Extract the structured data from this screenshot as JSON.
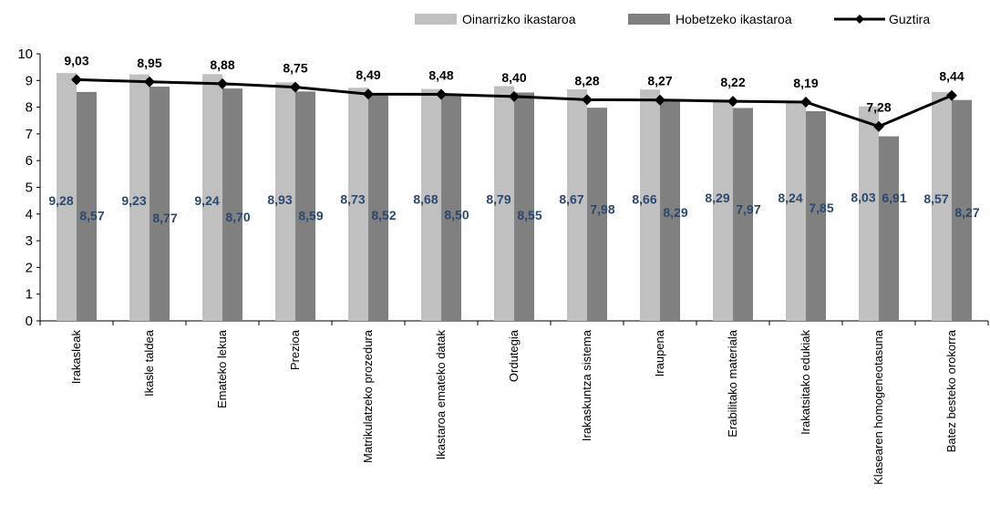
{
  "chart_data": {
    "type": "bar",
    "categories": [
      "Irakasleak",
      "Ikasle taldea",
      "Emateko lekua",
      "Prezioa",
      "Matrikulatzeko prozedura",
      "Ikastaroa emateko datak",
      "Ordutegia",
      "Irakaskuntza sistema",
      "Iraupena",
      "Erabilitako materiala",
      "Irakatsitako edukiak",
      "Klasearen homogeneotasuna",
      "Batez  besteko orokorra"
    ],
    "series": [
      {
        "name": "Oinarrizko ikastaroa",
        "type": "bar",
        "color": "#c0c0c0",
        "values": [
          9.28,
          9.23,
          9.24,
          8.93,
          8.73,
          8.68,
          8.79,
          8.67,
          8.66,
          8.29,
          8.24,
          8.03,
          8.57
        ],
        "labels": [
          "9,28",
          "9,23",
          "9,24",
          "8,93",
          "8,73",
          "8,68",
          "8,79",
          "8,67",
          "8,66",
          "8,29",
          "8,24",
          "8,03",
          "8,57"
        ]
      },
      {
        "name": "Hobetzeko ikastaroa",
        "type": "bar",
        "color": "#808080",
        "values": [
          8.57,
          8.77,
          8.7,
          8.59,
          8.52,
          8.5,
          8.55,
          7.98,
          8.29,
          7.97,
          7.85,
          6.91,
          8.27
        ],
        "labels": [
          "8,57",
          "8,77",
          "8,70",
          "8,59",
          "8,52",
          "8,50",
          "8,55",
          "7,98",
          "8,29",
          "7,97",
          "7,85",
          "6,91",
          "8,27"
        ]
      },
      {
        "name": "Guztira",
        "type": "line",
        "color": "#000000",
        "marker": "diamond",
        "values": [
          9.03,
          8.95,
          8.88,
          8.75,
          8.49,
          8.48,
          8.4,
          8.28,
          8.27,
          8.22,
          8.19,
          7.28,
          8.44
        ],
        "labels": [
          "9,03",
          "8,95",
          "8,88",
          "8,75",
          "8,49",
          "8,48",
          "8,40",
          "8,28",
          "8,27",
          "8,22",
          "8,19",
          "7,28",
          "8,44"
        ]
      }
    ],
    "yticks": [
      "0",
      "1",
      "2",
      "3",
      "4",
      "5",
      "6",
      "7",
      "8",
      "9",
      "10"
    ],
    "ylim": [
      0,
      10
    ],
    "grid": false,
    "legend": "top-right"
  }
}
